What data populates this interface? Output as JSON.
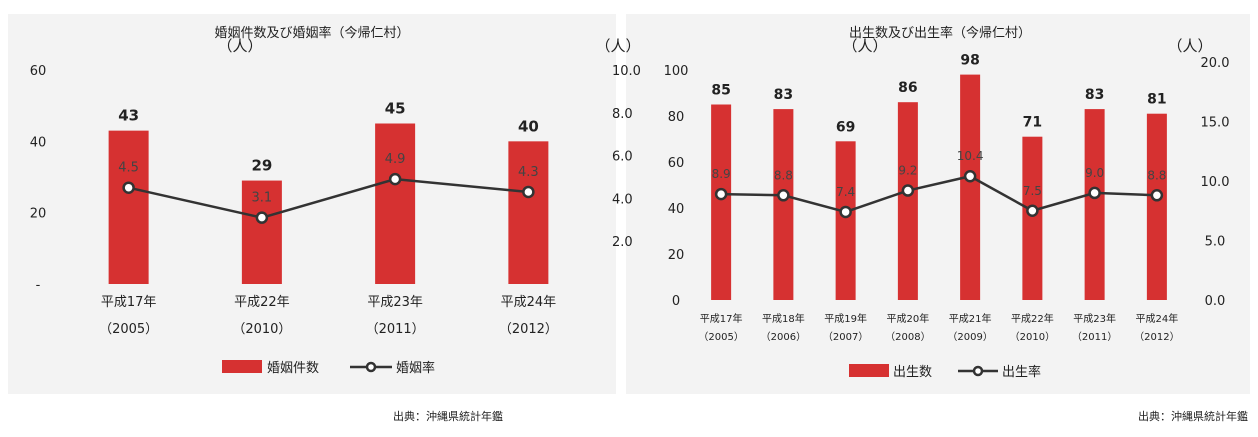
{
  "colors": {
    "bar": "#d63131",
    "line": "#333333",
    "marker_fill": "#ffffff",
    "text": "#222222",
    "panel_bg": "#f3f3f3"
  },
  "source_left": "出典：沖縄県統計年鑑",
  "source_right": "出典：沖縄県統計年鑑",
  "chart_data": [
    {
      "type": "bar",
      "title": "婚姻件数及び婚姻率（今帰仁村）",
      "unit_left": "（人）",
      "unit_right": "（人）",
      "categories": [
        "平成17年",
        "平成22年",
        "平成23年",
        "平成24年"
      ],
      "categories_sub": [
        "（2005）",
        "（2010）",
        "（2011）",
        "（2012）"
      ],
      "ylim": [
        0,
        60
      ],
      "y_ticks": [
        "-",
        "20",
        "40",
        "60"
      ],
      "y2lim": [
        0,
        10
      ],
      "y2_ticks": [
        "2.0",
        "4.0",
        "6.0",
        "8.0",
        "10.0"
      ],
      "y2_tick_values": [
        2,
        4,
        6,
        8,
        10
      ],
      "series": [
        {
          "name": "婚姻件数",
          "kind": "bar",
          "axis": "left",
          "values": [
            43,
            29,
            45,
            40
          ],
          "labels": [
            "43",
            "29",
            "45",
            "40"
          ]
        },
        {
          "name": "婚姻率",
          "kind": "line",
          "axis": "right",
          "values": [
            4.5,
            3.1,
            4.9,
            4.3
          ],
          "labels": [
            "4.5",
            "3.1",
            "4.9",
            "4.3"
          ]
        }
      ]
    },
    {
      "type": "bar",
      "title": "出生数及び出生率（今帰仁村）",
      "unit_left": "（人）",
      "unit_right": "（人）",
      "categories": [
        "平成17年",
        "平成18年",
        "平成19年",
        "平成20年",
        "平成21年",
        "平成22年",
        "平成23年",
        "平成24年"
      ],
      "categories_sub": [
        "（2005）",
        "（2006）",
        "（2007）",
        "（2008）",
        "（2009）",
        "（2010）",
        "（2011）",
        "（2012）"
      ],
      "ylim": [
        0,
        100
      ],
      "y_ticks": [
        "0",
        "20",
        "40",
        "60",
        "80",
        "100"
      ],
      "y2lim": [
        0,
        20
      ],
      "y2_ticks": [
        "0.0",
        "5.0",
        "10.0",
        "15.0",
        "20.0"
      ],
      "y2_tick_values": [
        0,
        5,
        10,
        15,
        20
      ],
      "series": [
        {
          "name": "出生数",
          "kind": "bar",
          "axis": "left",
          "values": [
            85,
            83,
            69,
            86,
            98,
            71,
            83,
            81
          ],
          "labels": [
            "85",
            "83",
            "69",
            "86",
            "98",
            "71",
            "83",
            "81"
          ]
        },
        {
          "name": "出生率",
          "kind": "line",
          "axis": "right",
          "values": [
            8.9,
            8.8,
            7.4,
            9.2,
            10.4,
            7.5,
            9.0,
            8.8
          ],
          "labels": [
            "8.9",
            "8.8",
            "7.4",
            "9.2",
            "10.4",
            "7.5",
            "9.0",
            "8.8"
          ]
        }
      ]
    }
  ]
}
